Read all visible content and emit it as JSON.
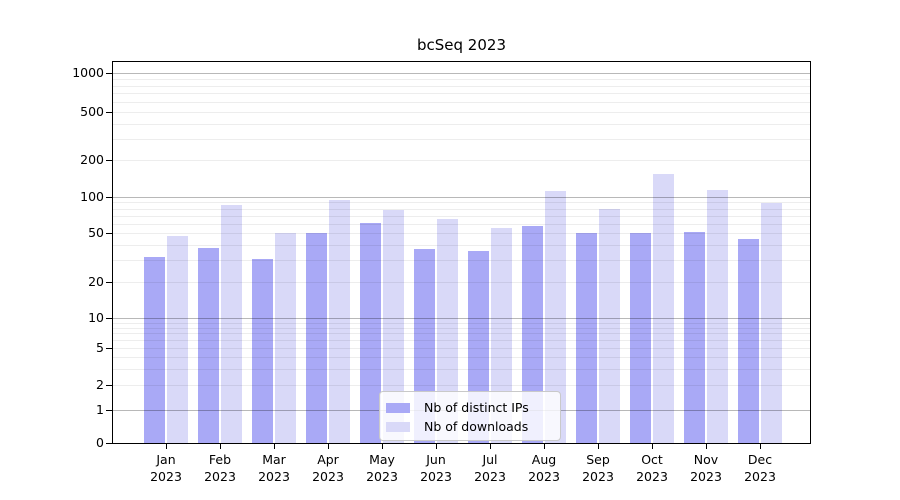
{
  "title": "bcSeq 2023",
  "legend": {
    "items": [
      {
        "label": "Nb of distinct IPs",
        "color": "#a9a9f6"
      },
      {
        "label": "Nb of downloads",
        "color": "#d9d9f8"
      }
    ]
  },
  "colors": {
    "ips_bar": "#a9a9f6",
    "downloads_bar": "#d9d9f8",
    "major_gridline": "#b5b5b5",
    "minor_gridline": "#ececec",
    "axis": "#000000"
  },
  "chart_data": {
    "type": "bar",
    "title": "bcSeq 2023",
    "categories": [
      "Jan 2023",
      "Feb 2023",
      "Mar 2023",
      "Apr 2023",
      "May 2023",
      "Jun 2023",
      "Jul 2023",
      "Aug 2023",
      "Sep 2023",
      "Oct 2023",
      "Nov 2023",
      "Dec 2023"
    ],
    "series": [
      {
        "name": "Nb of distinct IPs",
        "color": "#a9a9f6",
        "values": [
          32,
          38,
          31,
          50,
          61,
          37,
          36,
          57,
          50,
          50,
          51,
          45
        ]
      },
      {
        "name": "Nb of downloads",
        "color": "#d9d9f8",
        "values": [
          47,
          86,
          50,
          94,
          78,
          65,
          55,
          112,
          80,
          154,
          113,
          89
        ]
      }
    ],
    "xlabel": "",
    "ylabel": "",
    "yscale": "log-like (0 shown at baseline)",
    "yticks": [
      0,
      1,
      2,
      5,
      10,
      20,
      50,
      100,
      200,
      500,
      1000
    ],
    "ytick_labels": [
      "0",
      "1",
      "2",
      "5",
      "10",
      "20",
      "50",
      "100",
      "200",
      "500",
      "1000"
    ],
    "ylim": [
      0,
      1250
    ],
    "grid": true,
    "legend_position": "lower center"
  }
}
